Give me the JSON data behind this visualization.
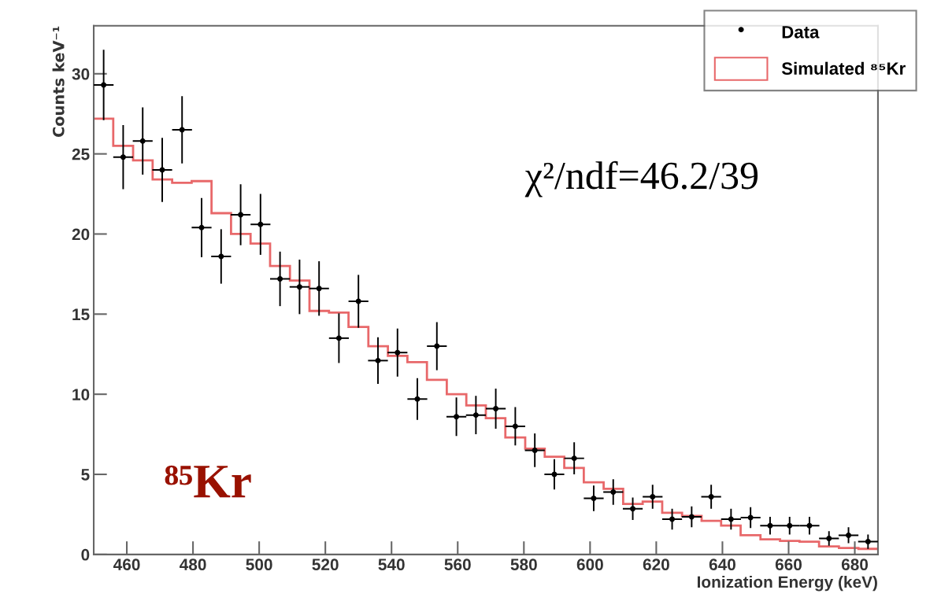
{
  "chart_data": {
    "type": "histogram",
    "xlabel": "Ionization Energy (keV)",
    "ylabel": "Counts keV⁻¹",
    "annotations": [
      "χ²/ndf=46.2/39",
      "⁸⁵Kr"
    ],
    "bins": [
      450.0,
      455.9,
      461.9,
      467.8,
      473.7,
      479.6,
      485.6,
      491.5,
      497.4,
      503.3,
      509.3,
      515.2,
      521.1,
      527.0,
      533.0,
      538.9,
      544.8,
      550.7,
      556.7,
      562.6,
      568.5,
      574.4,
      580.4,
      586.3,
      592.2,
      598.1,
      604.1,
      610.0,
      615.9,
      621.8,
      627.8,
      633.7,
      639.6,
      645.5,
      651.5,
      657.4,
      663.3,
      669.2,
      675.2,
      681.1,
      687.0
    ],
    "xlim": [
      450,
      687
    ],
    "ylim": [
      0,
      33
    ],
    "xticks": [
      460,
      480,
      500,
      520,
      540,
      560,
      580,
      600,
      620,
      640,
      660,
      680
    ],
    "yticks": [
      0,
      5,
      10,
      15,
      20,
      25,
      30
    ],
    "legend": "top right",
    "series": [
      {
        "name": "Data",
        "type": "scatter",
        "color": "#000000",
        "marker": "circle",
        "x": [
          453.0,
          458.9,
          464.8,
          470.7,
          476.7,
          482.6,
          488.5,
          494.4,
          500.4,
          506.3,
          512.2,
          518.1,
          524.1,
          530.0,
          535.9,
          541.8,
          547.8,
          553.7,
          559.6,
          565.5,
          571.5,
          577.4,
          583.3,
          589.2,
          595.2,
          601.1,
          607.0,
          612.9,
          618.9,
          624.8,
          630.7,
          636.6,
          642.6,
          648.5,
          654.4,
          660.3,
          666.3,
          672.2,
          678.1,
          684.0
        ],
        "values": [
          29.3,
          24.8,
          25.8,
          24.0,
          26.5,
          20.4,
          18.6,
          21.2,
          20.6,
          17.2,
          16.7,
          16.6,
          13.5,
          15.8,
          12.1,
          12.6,
          9.7,
          13.0,
          8.6,
          8.7,
          9.1,
          8.0,
          6.5,
          5.0,
          6.0,
          3.5,
          3.9,
          2.85,
          3.6,
          2.2,
          2.35,
          3.6,
          2.2,
          2.3,
          1.8,
          1.8,
          1.8,
          1.0,
          1.2,
          0.8
        ],
        "errors": [
          2.2,
          2.0,
          2.1,
          2.0,
          2.1,
          1.85,
          1.7,
          1.9,
          1.9,
          1.7,
          1.7,
          1.7,
          1.55,
          1.65,
          1.45,
          1.5,
          1.3,
          1.5,
          1.2,
          1.2,
          1.25,
          1.2,
          1.05,
          0.95,
          1.0,
          0.8,
          0.8,
          0.7,
          0.75,
          0.65,
          0.65,
          0.75,
          0.65,
          0.65,
          0.55,
          0.55,
          0.55,
          0.45,
          0.5,
          0.45
        ],
        "xerrors": [
          3,
          3,
          3,
          3,
          3,
          3,
          3,
          3,
          3,
          3,
          3,
          3,
          3,
          3,
          3,
          3,
          3,
          3,
          3,
          3,
          3,
          3,
          3,
          3,
          3,
          3,
          3,
          3,
          3,
          3,
          3,
          3,
          3,
          3,
          3,
          3,
          3,
          3,
          3,
          3
        ]
      },
      {
        "name": "Simulated ⁸⁵Kr",
        "color": "#e8686a",
        "values": [
          27.2,
          25.5,
          24.6,
          23.4,
          23.2,
          23.3,
          21.3,
          20.0,
          19.4,
          18.0,
          17.1,
          15.2,
          15.1,
          14.2,
          13.0,
          12.4,
          12.0,
          10.9,
          10.0,
          9.3,
          8.5,
          7.3,
          6.6,
          6.1,
          5.4,
          4.5,
          4.1,
          3.15,
          3.3,
          2.6,
          2.4,
          2.1,
          1.8,
          1.2,
          0.95,
          0.85,
          0.8,
          0.5,
          0.4,
          0.35
        ]
      }
    ]
  }
}
